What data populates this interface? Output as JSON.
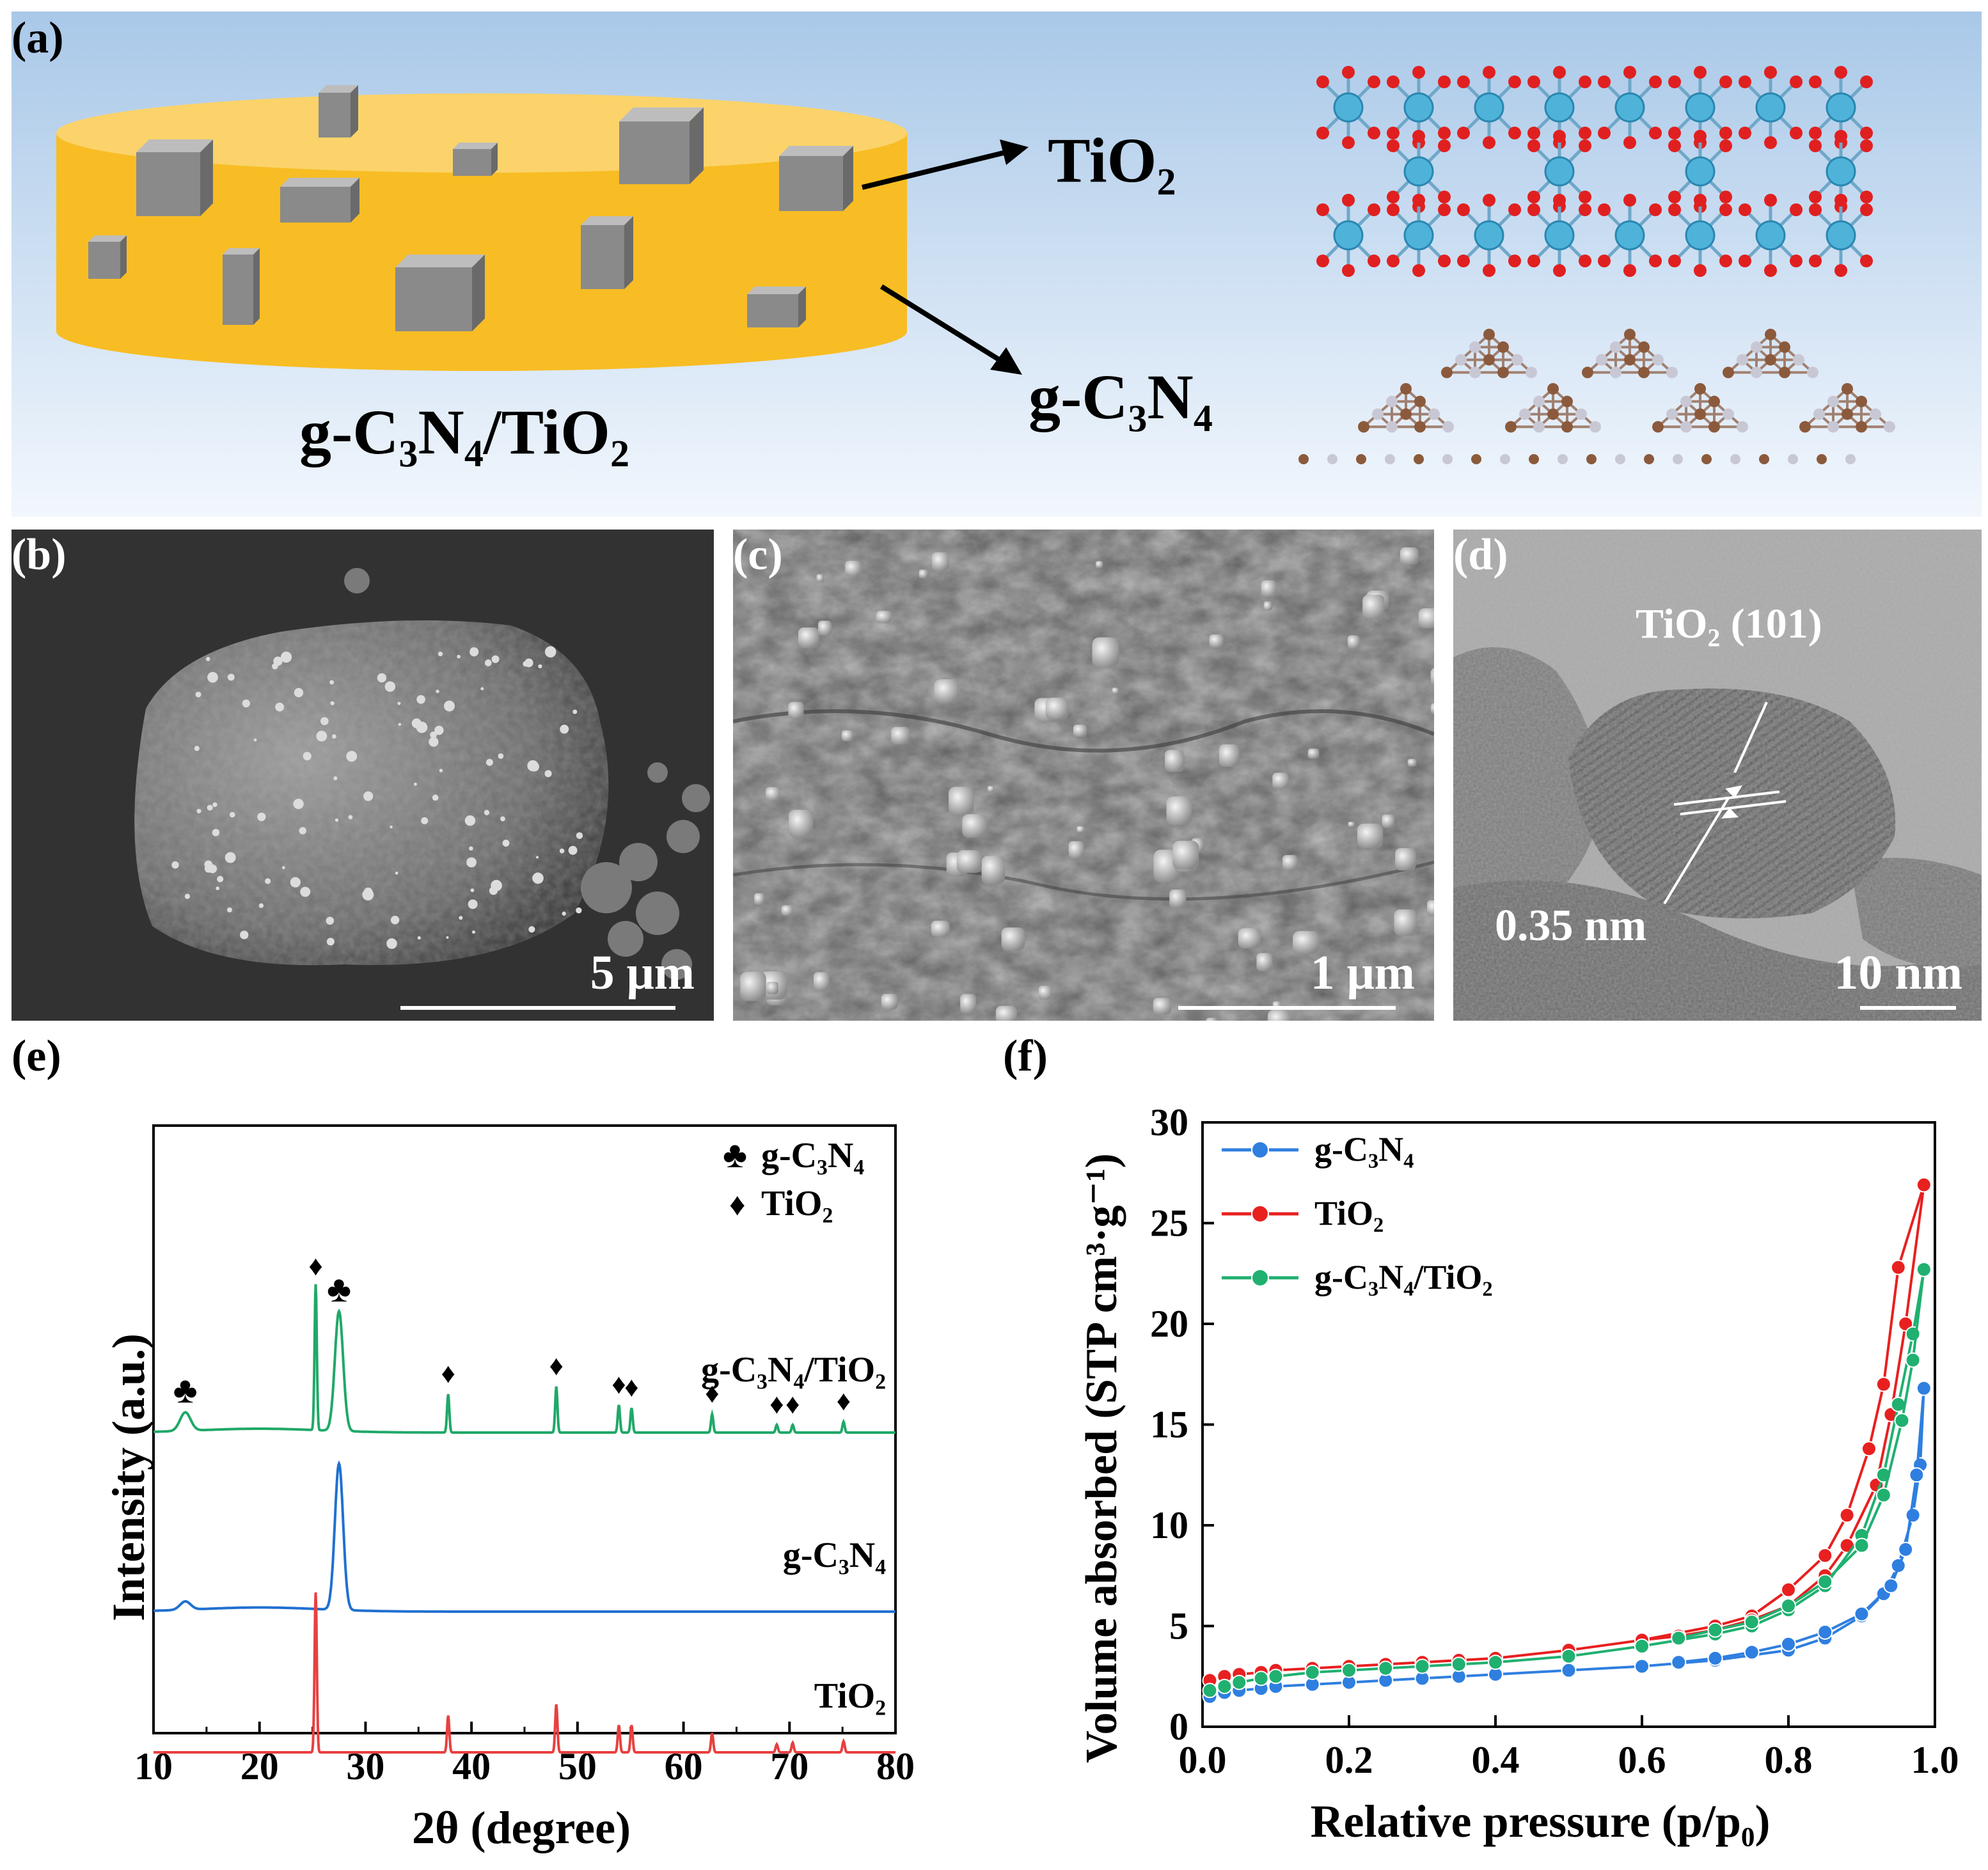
{
  "panel_a": {
    "label": "(a)",
    "composite_label": "g-C₃N₄/TiO₂",
    "arrow_label_tio2": "TiO₂",
    "arrow_label_gcn": "g-C₃N₄",
    "colors": {
      "background_top": "#a9c8e8",
      "background_bottom": "#f2f7fd",
      "disk": "#f8bd24",
      "cube": "#8a8a8a",
      "ti_atom": "#4fb3d9",
      "o_atom": "#e02020",
      "c_atom": "#8b5a3c",
      "n_atom": "#c8c8d4"
    }
  },
  "panel_b": {
    "label": "(b)",
    "scale": "5 μm"
  },
  "panel_c": {
    "label": "(c)",
    "scale": "1 μm"
  },
  "panel_d": {
    "label": "(d)",
    "plane": "TiO₂ (101)",
    "spacing": "0.35 nm",
    "scale": "10 nm"
  },
  "panel_e": {
    "label": "(e)",
    "chart_data": {
      "type": "line",
      "xlabel": "2θ (degree)",
      "ylabel": "Intensity (a.u.)",
      "xlim": [
        10,
        80
      ],
      "xticks": [
        "10",
        "20",
        "30",
        "40",
        "50",
        "60",
        "70",
        "80"
      ],
      "legend": [
        {
          "symbol": "♣",
          "name": "g-C₃N₄"
        },
        {
          "symbol": "♦",
          "name": "TiO₂"
        }
      ],
      "series": [
        {
          "name": "g-C₃N₄/TiO₂",
          "color": "#20a868",
          "peaks": [
            {
              "x": 13.0,
              "h": 0.12
            },
            {
              "x": 25.3,
              "h": 0.95
            },
            {
              "x": 27.5,
              "h": 0.78
            },
            {
              "x": 37.8,
              "h": 0.25
            },
            {
              "x": 48.0,
              "h": 0.3
            },
            {
              "x": 53.9,
              "h": 0.18
            },
            {
              "x": 55.1,
              "h": 0.16
            },
            {
              "x": 62.7,
              "h": 0.12
            },
            {
              "x": 68.8,
              "h": 0.05
            },
            {
              "x": 70.3,
              "h": 0.05
            },
            {
              "x": 75.1,
              "h": 0.07
            }
          ]
        },
        {
          "name": "g-C₃N₄",
          "color": "#2070d0",
          "peaks": [
            {
              "x": 13.0,
              "h": 0.05
            },
            {
              "x": 27.5,
              "h": 0.88
            }
          ]
        },
        {
          "name": "TiO₂",
          "color": "#e84040",
          "peaks": [
            {
              "x": 25.3,
              "h": 1.0
            },
            {
              "x": 37.8,
              "h": 0.23
            },
            {
              "x": 48.0,
              "h": 0.3
            },
            {
              "x": 53.9,
              "h": 0.17
            },
            {
              "x": 55.1,
              "h": 0.17
            },
            {
              "x": 62.7,
              "h": 0.12
            },
            {
              "x": 68.8,
              "h": 0.05
            },
            {
              "x": 70.3,
              "h": 0.06
            },
            {
              "x": 75.1,
              "h": 0.07
            }
          ]
        }
      ],
      "peak_markers": [
        {
          "x": 13.0,
          "symbol": "♣"
        },
        {
          "x": 25.3,
          "symbol": "♦"
        },
        {
          "x": 27.5,
          "symbol": "♣"
        },
        {
          "x": 37.8,
          "symbol": "♦"
        },
        {
          "x": 48.0,
          "symbol": "♦"
        },
        {
          "x": 53.9,
          "symbol": "♦"
        },
        {
          "x": 55.1,
          "symbol": "♦"
        },
        {
          "x": 62.7,
          "symbol": "♦"
        },
        {
          "x": 68.8,
          "symbol": "♦"
        },
        {
          "x": 70.3,
          "symbol": "♦"
        },
        {
          "x": 75.1,
          "symbol": "♦"
        }
      ]
    }
  },
  "panel_f": {
    "label": "(f)",
    "chart_data": {
      "type": "line",
      "xlabel": "Relative pressure (p/p₀)",
      "ylabel": "Volume absorbed (STP cm³·g⁻¹)",
      "xlim": [
        0,
        1.0
      ],
      "ylim": [
        0,
        30
      ],
      "xticks": [
        "0.0",
        "0.2",
        "0.4",
        "0.6",
        "0.8",
        "1.0"
      ],
      "yticks": [
        "0",
        "5",
        "10",
        "15",
        "20",
        "25",
        "30"
      ],
      "legend_position": "top-left",
      "series": [
        {
          "name": "g-C₃N₄",
          "color": "#2f7fe0",
          "ads": [
            [
              0.01,
              1.5
            ],
            [
              0.03,
              1.7
            ],
            [
              0.05,
              1.8
            ],
            [
              0.08,
              1.9
            ],
            [
              0.1,
              2.0
            ],
            [
              0.15,
              2.1
            ],
            [
              0.2,
              2.2
            ],
            [
              0.25,
              2.3
            ],
            [
              0.3,
              2.4
            ],
            [
              0.35,
              2.5
            ],
            [
              0.4,
              2.6
            ],
            [
              0.5,
              2.8
            ],
            [
              0.6,
              3.0
            ],
            [
              0.7,
              3.3
            ],
            [
              0.8,
              3.8
            ],
            [
              0.85,
              4.4
            ],
            [
              0.9,
              5.5
            ],
            [
              0.93,
              6.6
            ],
            [
              0.95,
              8.0
            ],
            [
              0.97,
              10.5
            ],
            [
              0.98,
              13.0
            ],
            [
              0.985,
              16.8
            ]
          ],
          "des": [
            [
              0.985,
              16.8
            ],
            [
              0.975,
              12.5
            ],
            [
              0.96,
              8.8
            ],
            [
              0.94,
              7.0
            ],
            [
              0.9,
              5.6
            ],
            [
              0.85,
              4.7
            ],
            [
              0.8,
              4.1
            ],
            [
              0.75,
              3.7
            ],
            [
              0.7,
              3.4
            ],
            [
              0.65,
              3.2
            ]
          ]
        },
        {
          "name": "TiO₂",
          "color": "#e82020",
          "ads": [
            [
              0.01,
              2.3
            ],
            [
              0.03,
              2.5
            ],
            [
              0.05,
              2.6
            ],
            [
              0.08,
              2.7
            ],
            [
              0.1,
              2.8
            ],
            [
              0.15,
              2.9
            ],
            [
              0.2,
              3.0
            ],
            [
              0.25,
              3.1
            ],
            [
              0.3,
              3.2
            ],
            [
              0.35,
              3.3
            ],
            [
              0.4,
              3.4
            ],
            [
              0.5,
              3.8
            ],
            [
              0.6,
              4.3
            ],
            [
              0.7,
              5.0
            ],
            [
              0.75,
              5.5
            ],
            [
              0.8,
              6.8
            ],
            [
              0.85,
              8.5
            ],
            [
              0.88,
              10.5
            ],
            [
              0.91,
              13.8
            ],
            [
              0.93,
              17.0
            ],
            [
              0.95,
              22.8
            ],
            [
              0.985,
              26.9
            ]
          ],
          "des": [
            [
              0.985,
              26.9
            ],
            [
              0.96,
              20.0
            ],
            [
              0.94,
              15.5
            ],
            [
              0.92,
              12.0
            ],
            [
              0.88,
              9.0
            ],
            [
              0.85,
              7.5
            ],
            [
              0.8,
              6.0
            ],
            [
              0.75,
              5.3
            ],
            [
              0.7,
              4.8
            ],
            [
              0.65,
              4.5
            ],
            [
              0.6,
              4.3
            ]
          ]
        },
        {
          "name": "g-C₃N₄/TiO₂",
          "color": "#20b070",
          "ads": [
            [
              0.01,
              1.8
            ],
            [
              0.03,
              2.0
            ],
            [
              0.05,
              2.2
            ],
            [
              0.08,
              2.4
            ],
            [
              0.1,
              2.5
            ],
            [
              0.15,
              2.7
            ],
            [
              0.2,
              2.8
            ],
            [
              0.25,
              2.9
            ],
            [
              0.3,
              3.0
            ],
            [
              0.35,
              3.1
            ],
            [
              0.4,
              3.2
            ],
            [
              0.5,
              3.5
            ],
            [
              0.6,
              4.0
            ],
            [
              0.7,
              4.6
            ],
            [
              0.75,
              5.0
            ],
            [
              0.8,
              5.8
            ],
            [
              0.85,
              7.0
            ],
            [
              0.9,
              9.5
            ],
            [
              0.93,
              12.5
            ],
            [
              0.95,
              16.0
            ],
            [
              0.97,
              19.5
            ],
            [
              0.985,
              22.7
            ]
          ],
          "des": [
            [
              0.985,
              22.7
            ],
            [
              0.97,
              18.2
            ],
            [
              0.955,
              15.2
            ],
            [
              0.93,
              11.5
            ],
            [
              0.9,
              9.0
            ],
            [
              0.85,
              7.2
            ],
            [
              0.8,
              6.0
            ],
            [
              0.75,
              5.2
            ],
            [
              0.7,
              4.8
            ],
            [
              0.65,
              4.4
            ]
          ]
        }
      ]
    }
  }
}
